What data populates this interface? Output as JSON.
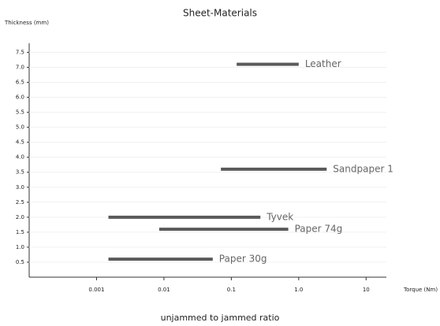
{
  "chart_data": {
    "type": "range-bar",
    "title": "Sheet-Materials",
    "y_label": "Thickness (mm)",
    "x_label": "Torque (Nm)",
    "caption": "unjammed to jammed ratio",
    "x_scale": "log",
    "xlim": [
      0.0001,
      20
    ],
    "ylim": [
      0,
      7.8
    ],
    "grid": true,
    "color": "#5a5a5a",
    "xticks": [
      0.001,
      0.01,
      0.1,
      {
        "value": 1,
        "label": "1.0"
      },
      10
    ],
    "yticks": [
      0.5,
      {
        "value": 1,
        "label": "1.0"
      },
      1.5,
      {
        "value": 2,
        "label": "2.0"
      },
      2.5,
      {
        "value": 3,
        "label": "3.0"
      },
      3.5,
      {
        "value": 4,
        "label": "4.0"
      },
      4.5,
      {
        "value": 5,
        "label": "5.0"
      },
      5.5,
      {
        "value": 6,
        "label": "6.0"
      },
      6.5,
      {
        "value": 7,
        "label": "7.0"
      },
      7.5
    ],
    "series": [
      {
        "name": "Leather",
        "thickness": 7.1,
        "values": [
          0.12,
          1.0
        ]
      },
      {
        "name": "Sandpaper 1",
        "thickness": 3.6,
        "values": [
          0.07,
          2.6
        ]
      },
      {
        "name": "Tyvek",
        "thickness": 2.0,
        "values": [
          0.0015,
          0.27
        ]
      },
      {
        "name": "Paper 74g",
        "thickness": 1.6,
        "values": [
          0.0085,
          0.7
        ]
      },
      {
        "name": "Paper 30g",
        "thickness": 0.6,
        "values": [
          0.0015,
          0.053
        ]
      }
    ]
  }
}
